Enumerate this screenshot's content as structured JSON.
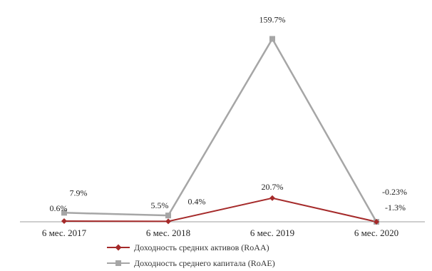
{
  "chart_data": {
    "type": "line",
    "categories": [
      "6 мес. 2017",
      "6 мес. 2018",
      "6 мес. 2019",
      "6 мес. 2020"
    ],
    "ylim": [
      0,
      160
    ],
    "grid": false,
    "legend_position": "bottom",
    "series": [
      {
        "name": "Доходность средних активов (RoAA)",
        "color": "#a52a2a",
        "marker": "diamond",
        "values": [
          0.6,
          0.4,
          20.7,
          -0.23
        ],
        "labels": [
          "0.6%",
          "0.4%",
          "20.7%",
          "-0.23%"
        ]
      },
      {
        "name": "Доходность среднего капитала (RoAE)",
        "color": "#a6a6a6",
        "marker": "square",
        "values": [
          7.9,
          5.5,
          159.7,
          -1.3
        ],
        "labels": [
          "7.9%",
          "5.5%",
          "159.7%",
          "-1.3%"
        ]
      }
    ]
  }
}
